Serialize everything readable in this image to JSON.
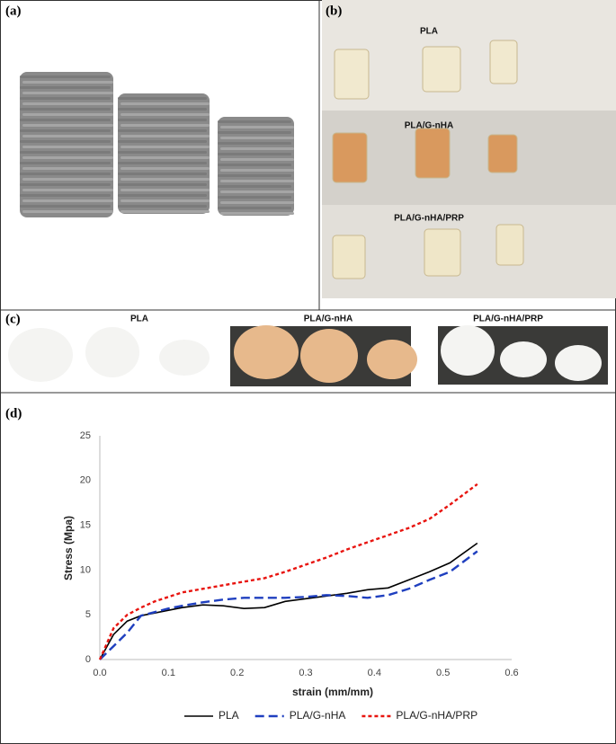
{
  "panels": {
    "a": {
      "label": "(a)"
    },
    "b": {
      "label": "(b)",
      "rows": [
        "PLA",
        "PLA/G-nHA",
        "PLA/G-nHA/PRP"
      ]
    },
    "c": {
      "label": "(c)",
      "groups": [
        "PLA",
        "PLA/G-nHA",
        "PLA/G-nHA/PRP"
      ]
    },
    "d": {
      "label": "(d)"
    }
  },
  "chart_data": {
    "type": "line",
    "x_label": "strain (mm/mm)",
    "y_label": "Stress (Mpa)",
    "x": [
      0,
      0.02,
      0.04,
      0.06,
      0.08,
      0.1,
      0.12,
      0.15,
      0.18,
      0.21,
      0.24,
      0.27,
      0.3,
      0.33,
      0.36,
      0.39,
      0.42,
      0.45,
      0.48,
      0.51,
      0.55
    ],
    "series": [
      {
        "name": "PLA",
        "color": "#000000",
        "style": "solid",
        "values": [
          0,
          2.8,
          4.3,
          4.9,
          5.2,
          5.5,
          5.8,
          6.1,
          6.0,
          5.7,
          5.8,
          6.5,
          6.8,
          7.1,
          7.4,
          7.8,
          8.0,
          8.9,
          9.8,
          10.8,
          13.0
        ]
      },
      {
        "name": "PLA/G-nHA",
        "color": "#1f3fbf",
        "style": "dashed",
        "values": [
          0,
          1.5,
          3.0,
          4.9,
          5.3,
          5.7,
          6.0,
          6.4,
          6.7,
          6.9,
          6.9,
          6.9,
          7.0,
          7.2,
          7.1,
          6.9,
          7.2,
          7.9,
          8.9,
          9.8,
          12.1
        ]
      },
      {
        "name": "PLA/G-nHA/PRP",
        "color": "#e8140f",
        "style": "dotted",
        "values": [
          0,
          3.5,
          5.0,
          5.8,
          6.5,
          7.0,
          7.5,
          7.9,
          8.3,
          8.7,
          9.1,
          9.8,
          10.6,
          11.4,
          12.3,
          13.1,
          13.9,
          14.7,
          15.7,
          17.3,
          19.6
        ]
      }
    ],
    "xlim": [
      0,
      0.6
    ],
    "xticks": [
      {
        "value": 0,
        "label": "0.0"
      },
      0.1,
      0.2,
      0.3,
      0.4,
      0.5,
      0.6
    ],
    "ylim": [
      0,
      25
    ],
    "yticks": [
      0,
      5,
      10,
      15,
      20,
      25
    ],
    "grid": false,
    "legend": "bottom"
  }
}
